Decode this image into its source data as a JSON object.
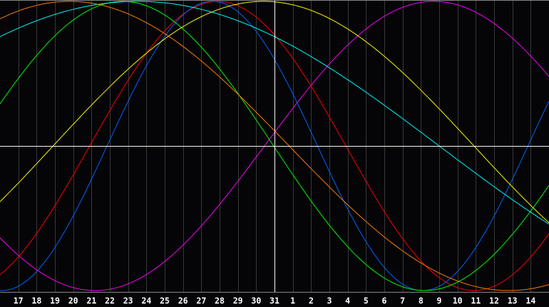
{
  "chart_data": {
    "type": "line",
    "title": "",
    "xlabel": "",
    "ylabel": "",
    "ylim": [
      -1,
      1
    ],
    "grid": true,
    "center_day": "31",
    "categories": [
      "17",
      "18",
      "19",
      "20",
      "21",
      "22",
      "23",
      "24",
      "25",
      "26",
      "27",
      "28",
      "29",
      "30",
      "31",
      "1",
      "2",
      "3",
      "4",
      "5",
      "6",
      "7",
      "8",
      "9",
      "10",
      "11",
      "12",
      "13",
      "14"
    ],
    "series": [
      {
        "color": "#ff00ff",
        "period_days": 37,
        "peak_day_offset": 8.7
      },
      {
        "color": "#ff0000",
        "period_days": 28,
        "peak_day_offset": -3.1
      },
      {
        "color": "#0066ff",
        "period_days": 23,
        "peak_day_offset": -3.4
      },
      {
        "color": "#00ff00",
        "period_days": 33,
        "peak_day_offset": -8.3
      },
      {
        "color": "#ffff00",
        "period_days": 46,
        "peak_day_offset": -0.6
      },
      {
        "color": "#00ffff",
        "period_days": 66,
        "peak_day_offset": -7.5
      },
      {
        "color": "#ff8000",
        "period_days": 48,
        "peak_day_offset": -11.2
      }
    ]
  },
  "colors": {
    "background": "#050508",
    "grid": "#3a3a3a",
    "axis": "#ffffff",
    "baseline": "#8a8a8a"
  }
}
